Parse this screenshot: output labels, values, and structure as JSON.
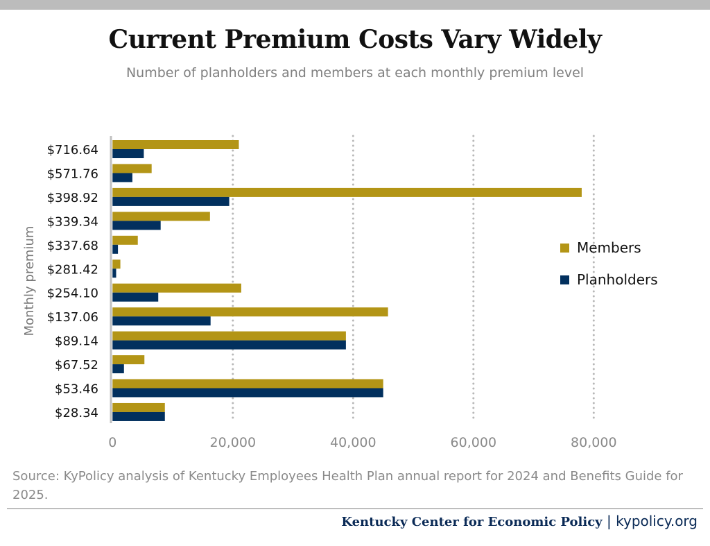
{
  "title": "Current Premium Costs Vary Widely",
  "subtitle": "Number of planholders and members at each monthly premium level",
  "source": "Source: KyPolicy analysis of Kentucky Employees Health Plan annual report for 2024 and Benefits Guide for 2025.",
  "footer": {
    "org": "Kentucky Center for Economic Policy",
    "separator": "|",
    "url": "kypolicy.org"
  },
  "chart_data": {
    "type": "bar",
    "orientation": "horizontal",
    "ylabel": "Monthly premium",
    "xlabel": "",
    "xlim": [
      0,
      80000
    ],
    "xticks": [
      0,
      20000,
      40000,
      60000,
      80000
    ],
    "xtick_labels": [
      "0",
      "20,000",
      "40,000",
      "60,000",
      "80,000"
    ],
    "grid": "vertical dotted",
    "legend": "right",
    "categories": [
      "$716.64",
      "$571.76",
      "$398.92",
      "$339.34",
      "$337.68",
      "$281.42",
      "$254.10",
      "$137.06",
      "$89.14",
      "$67.52",
      "$53.46",
      "$28.34"
    ],
    "series": [
      {
        "name": "Members",
        "color": "#b39516",
        "values": [
          21000,
          6500,
          78000,
          16200,
          4200,
          1300,
          21400,
          45800,
          38800,
          5300,
          45000,
          8700
        ]
      },
      {
        "name": "Planholders",
        "color": "#02305e",
        "values": [
          5200,
          3300,
          19400,
          8000,
          900,
          600,
          7600,
          16300,
          38800,
          1900,
          45000,
          8700
        ]
      }
    ]
  }
}
